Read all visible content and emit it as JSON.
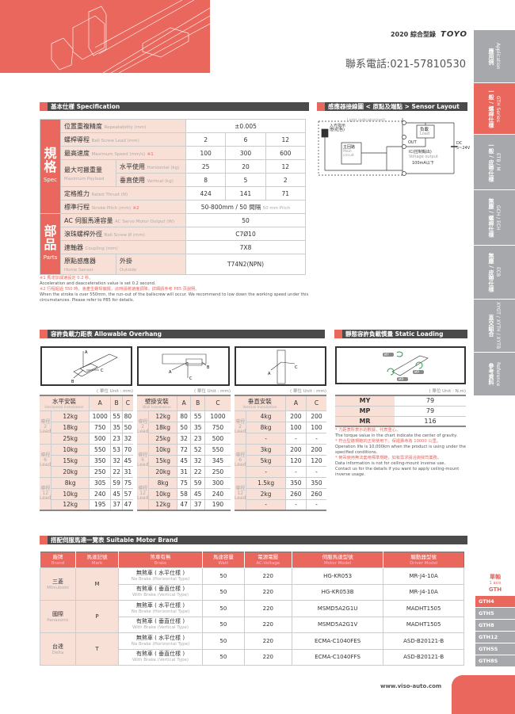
{
  "header": {
    "catalog": "2020 綜合型錄",
    "logo": "TOYO",
    "phone": "聯系電話:021-57810530"
  },
  "side_tabs": [
    {
      "zh": "應用例",
      "en": "Application",
      "active": false
    },
    {
      "zh": "一般 / 螺桿仕樣",
      "en": "GTH Series",
      "active": true
    },
    {
      "zh": "一般 / 皮帶仕樣",
      "en": "ETB / M",
      "active": false
    },
    {
      "zh": "無塵 / 螺桿仕樣",
      "en": "GCH / ECH",
      "active": false
    },
    {
      "zh": "無塵 / 皮帶仕樣",
      "en": "ECB",
      "active": false
    },
    {
      "zh": "直交組合",
      "en": "XYGT / XYTH / XYTB",
      "active": false
    },
    {
      "zh": "參考資料",
      "en": "Reference",
      "active": false
    }
  ],
  "spec": {
    "title": "基本仕樣 Specification",
    "group_spec": {
      "zh": "規格",
      "en": "Spec"
    },
    "group_parts": {
      "zh": "部品",
      "en": "Parts"
    },
    "rows": {
      "repeat": {
        "zh": "位置重複精度",
        "en": "Repeatability (mm)",
        "value": "±0.005"
      },
      "lead": {
        "zh": "螺桿導程",
        "en": "Ball Screw Lead (mm)",
        "values": [
          "2",
          "6",
          "12"
        ]
      },
      "speed": {
        "zh": "最高速度",
        "en": "Maximum Speed (mm/s)",
        "mark": "※1",
        "values": [
          "100",
          "300",
          "600"
        ]
      },
      "payload": {
        "zh": "最大可搬重量",
        "en": "Maximum Payload",
        "h_zh": "水平使用",
        "h_en": "Horizontal (kg)",
        "h_values": [
          "25",
          "20",
          "12"
        ],
        "v_zh": "垂直使用",
        "v_en": "Vertical (kg)",
        "v_values": [
          "8",
          "5",
          "2"
        ]
      },
      "thrust": {
        "zh": "定格推力",
        "en": "Rated Thrust (N)",
        "values": [
          "424",
          "141",
          "71"
        ]
      },
      "stroke": {
        "zh": "標準行程",
        "en": "Stroke Pitch (mm)",
        "mark": "※2",
        "value": "50-800mm / 50 間隔",
        "value_en": "50 mm Pitch"
      },
      "motor": {
        "zh": "AC 伺服馬達容量",
        "en": "AC Servo Motor Output (W)",
        "value": "50"
      },
      "screw": {
        "zh": "滾珠螺桿外徑",
        "en": "Ball Screw Ø (mm)",
        "value": "C7Ø10"
      },
      "coupling": {
        "zh": "連軸器",
        "en": "Coupling (mm)",
        "value": "7X8"
      },
      "sensor": {
        "zh": "原點感應器",
        "en": "Home Sensor",
        "o_zh": "外掛",
        "o_en": "Outside",
        "value": "T74N2(NPN)"
      }
    },
    "notes": [
      {
        "text": "※1 馬達加減速設定 0.2 秒。",
        "red": true
      },
      {
        "text": "Acceleration and deacceleration value is set 0.2 second.",
        "red": false
      },
      {
        "text": "※2 行程超過 550 時，會產生螺桿偏擺，此時請將速度調降。詳細請參考 P85 頁說明。",
        "red": true
      },
      {
        "text": "When the stroke is over 550mm, the run-out of the ballscrew will occur. We recommend to low down the working speed under this circumstances. Please refer to P85 for details.",
        "red": false
      }
    ]
  },
  "sensor": {
    "title": "感應器接線圖 < 原點及端點 > Sensor Layout",
    "light": "Light indicator(red)",
    "indicator": "入光指示燈(紅色)",
    "main_zh": "主回路",
    "main_en": "Main circuit",
    "load_zh": "負載",
    "load_en": "Load",
    "out": "OUT",
    "ic": "IC(控制輸出)",
    "vout": "Voltage output",
    "current": "100mA以下",
    "dc": "DC 5~24V"
  },
  "overhang": {
    "title": "容許負載力距表 Allowable Overhang",
    "unit": "( 單位 Unit : mm)",
    "lead_label": "導程",
    "lead_en": "Lead",
    "tables": [
      {
        "zh": "水平安裝",
        "en": "Horizontal Installation",
        "cols": [
          "A",
          "B",
          "C"
        ],
        "groups": [
          {
            "lead": "2",
            "rows": [
              [
                "12kg",
                "1000",
                "55",
                "80"
              ],
              [
                "18kg",
                "750",
                "35",
                "50"
              ],
              [
                "25kg",
                "500",
                "23",
                "32"
              ]
            ]
          },
          {
            "lead": "6",
            "rows": [
              [
                "10kg",
                "550",
                "53",
                "70"
              ],
              [
                "15kg",
                "350",
                "32",
                "45"
              ],
              [
                "20kg",
                "250",
                "22",
                "31"
              ]
            ]
          },
          {
            "lead": "12",
            "rows": [
              [
                "8kg",
                "305",
                "59",
                "75"
              ],
              [
                "10kg",
                "240",
                "45",
                "57"
              ],
              [
                "12kg",
                "195",
                "37",
                "47"
              ]
            ]
          }
        ]
      },
      {
        "zh": "壁掛安裝",
        "en": "Wall Installation",
        "cols": [
          "A",
          "B",
          "C"
        ],
        "groups": [
          {
            "lead": "2",
            "rows": [
              [
                "12kg",
                "80",
                "55",
                "1000"
              ],
              [
                "18kg",
                "50",
                "35",
                "750"
              ],
              [
                "25kg",
                "32",
                "23",
                "500"
              ]
            ]
          },
          {
            "lead": "6",
            "rows": [
              [
                "10kg",
                "72",
                "52",
                "550"
              ],
              [
                "15kg",
                "45",
                "32",
                "345"
              ],
              [
                "20kg",
                "31",
                "22",
                "250"
              ]
            ]
          },
          {
            "lead": "12",
            "rows": [
              [
                "8kg",
                "75",
                "59",
                "300"
              ],
              [
                "10kg",
                "58",
                "45",
                "240"
              ],
              [
                "12kg",
                "47",
                "37",
                "190"
              ]
            ]
          }
        ]
      },
      {
        "zh": "垂直安裝",
        "en": "Vertical Installation",
        "cols": [
          "A",
          "C"
        ],
        "groups": [
          {
            "lead": "2",
            "rows": [
              [
                "4kg",
                "200",
                "200"
              ],
              [
                "8kg",
                "100",
                "100"
              ],
              [
                "-",
                "-",
                "-"
              ]
            ]
          },
          {
            "lead": "6",
            "rows": [
              [
                "3kg",
                "200",
                "200"
              ],
              [
                "5kg",
                "120",
                "120"
              ],
              [
                "-",
                "-",
                "-"
              ]
            ]
          },
          {
            "lead": "12",
            "rows": [
              [
                "1.5kg",
                "350",
                "350"
              ],
              [
                "2kg",
                "260",
                "260"
              ],
              [
                "-",
                "-",
                "-"
              ]
            ]
          }
        ]
      }
    ]
  },
  "moment": {
    "title": "靜態容許負載慣量 Static Loading Moment",
    "unit": "( 單位 Unit : N.m)",
    "rows": [
      [
        "MY",
        "79"
      ],
      [
        "MP",
        "79"
      ],
      [
        "MR",
        "116"
      ]
    ],
    "notes": [
      {
        "text": "* 力距表所表示的數據，代表重心。",
        "red": true
      },
      {
        "text": "The torque value in the chart indicate the center of gravity.",
        "red": false
      },
      {
        "text": "* 符合型錄規範的正常使用下，保證壽命為 10000 公里。",
        "red": true
      },
      {
        "text": "Operation life is 10,000km when the product is using under the specified conditions.",
        "red": false
      },
      {
        "text": "* 倒吊使用無法套用標準規範，如有需求請洽詢我司業務。",
        "red": true
      },
      {
        "text": "Data information is not for ceiling-mount inverse use.",
        "red": false
      },
      {
        "text": "Contact us for the details if you want to apply ceiling-mount inverse usage.",
        "red": false
      }
    ]
  },
  "motor": {
    "title": "搭配伺服馬達一覽表 Suitable Motor Brand",
    "headers": [
      [
        "廠牌",
        "Brand"
      ],
      [
        "馬達記號",
        "Mark"
      ],
      [
        "煞車有無",
        "Brake"
      ],
      [
        "馬達容量",
        "Watt"
      ],
      [
        "電源電壓",
        "AC-Voltage"
      ],
      [
        "伺服馬達型號",
        "Motor Model"
      ],
      [
        "驅動器型號",
        "Driver Model"
      ]
    ],
    "brands": [
      {
        "zh": "三菱",
        "en": "Mitsubishi",
        "mark": "M",
        "rows": [
          [
            "無煞車 ( 水平仕樣 )",
            "No Brake (Horizontal Type)",
            "50",
            "220",
            "HG-KR053",
            "MR-J4-10A"
          ],
          [
            "有煞車 ( 垂直仕樣 )",
            "With Brake (Vertical Type)",
            "50",
            "220",
            "HG-KR053B",
            "MR-J4-10A"
          ]
        ]
      },
      {
        "zh": "國際",
        "en": "Panasonic",
        "mark": "P",
        "rows": [
          [
            "無煞車 ( 水平仕樣 )",
            "No Brake (Horizontal Type)",
            "50",
            "220",
            "MSMD5A2G1U",
            "MADHT1505"
          ],
          [
            "有煞車 ( 垂直仕樣 )",
            "With Brake (Vertical Type)",
            "50",
            "220",
            "MSMD5A2G1V",
            "MADHT1505"
          ]
        ]
      },
      {
        "zh": "台達",
        "en": "Delta",
        "mark": "T",
        "rows": [
          [
            "無煞車 ( 水平仕樣 )",
            "No Brake (Horizontal Type)",
            "50",
            "220",
            "ECMA-C1040FES",
            "ASD-B20121-B"
          ],
          [
            "有煞車 ( 垂直仕樣 )",
            "With Brake (Vertical Type)",
            "50",
            "220",
            "ECMA-C1040FFS",
            "ASD-B20121-B"
          ]
        ]
      }
    ]
  },
  "model_nav": {
    "zh": "單軸",
    "en": "1 axis",
    "series": "GTH",
    "items": [
      "GTH4",
      "GTH5",
      "GTH8",
      "GTH12",
      "GTH5S",
      "GTH8S"
    ],
    "active": "GTH4"
  },
  "footer": {
    "url": "www.viso-auto.com"
  },
  "colors": {
    "accent": "#e9675d",
    "gray": "#a7a8ab",
    "pink": "#f9e0d7",
    "dark": "#4a4a4a"
  }
}
